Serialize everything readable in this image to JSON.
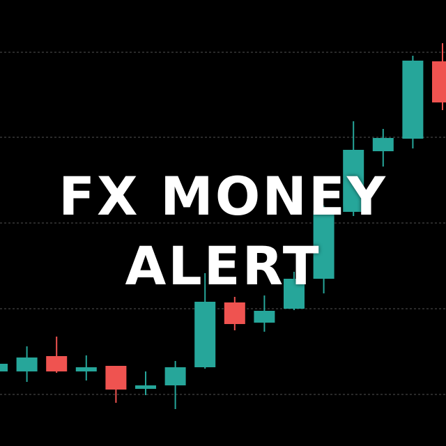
{
  "title": {
    "line1": "FX MONEY",
    "line2": "ALERT"
  },
  "colors": {
    "background": "#000000",
    "bullish": "#26a69a",
    "bearish": "#ef5350",
    "grid": "#555555",
    "text": "#ffffff"
  },
  "chart_data": {
    "type": "candlestick",
    "grid": "horizontal-dashed",
    "ylim": [
      0,
      640
    ],
    "candles": [
      {
        "open": 107,
        "close": 118,
        "high": 120,
        "low": 105
      },
      {
        "open": 107,
        "close": 127,
        "high": 143,
        "low": 92
      },
      {
        "open": 129,
        "close": 107,
        "high": 157,
        "low": 105
      },
      {
        "open": 107,
        "close": 113,
        "high": 130,
        "low": 94
      },
      {
        "open": 115,
        "close": 81,
        "high": 115,
        "low": 62
      },
      {
        "open": 82,
        "close": 87,
        "high": 107,
        "low": 73
      },
      {
        "open": 87,
        "close": 113,
        "high": 122,
        "low": 53
      },
      {
        "open": 113,
        "close": 207,
        "high": 248,
        "low": 111
      },
      {
        "open": 206,
        "close": 175,
        "high": 214,
        "low": 166
      },
      {
        "open": 177,
        "close": 194,
        "high": 216,
        "low": 164
      },
      {
        "open": 197,
        "close": 240,
        "high": 250,
        "low": 195
      },
      {
        "open": 240,
        "close": 338,
        "high": 345,
        "low": 219
      },
      {
        "open": 336,
        "close": 425,
        "high": 466,
        "low": 330
      },
      {
        "open": 423,
        "close": 442,
        "high": 455,
        "low": 401
      },
      {
        "open": 441,
        "close": 553,
        "high": 560,
        "low": 427
      },
      {
        "open": 552,
        "close": 493,
        "high": 578,
        "low": 482
      }
    ]
  }
}
